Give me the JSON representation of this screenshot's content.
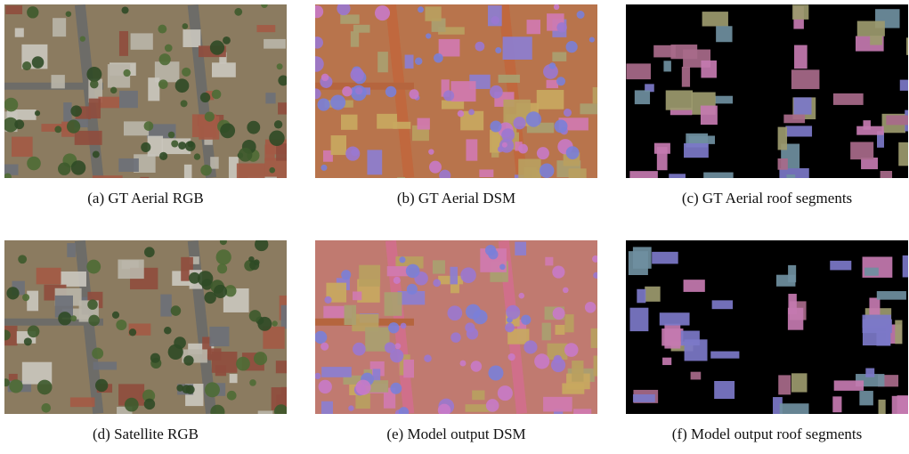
{
  "figure": {
    "panels": [
      {
        "caption": "(a) GT Aerial RGB"
      },
      {
        "caption": "(b) GT Aerial DSM"
      },
      {
        "caption": "(c) GT Aerial roof segments"
      },
      {
        "caption": "(d) Satellite RGB"
      },
      {
        "caption": "(e) Model output DSM"
      },
      {
        "caption": "(f) Model output roof segments"
      }
    ]
  }
}
